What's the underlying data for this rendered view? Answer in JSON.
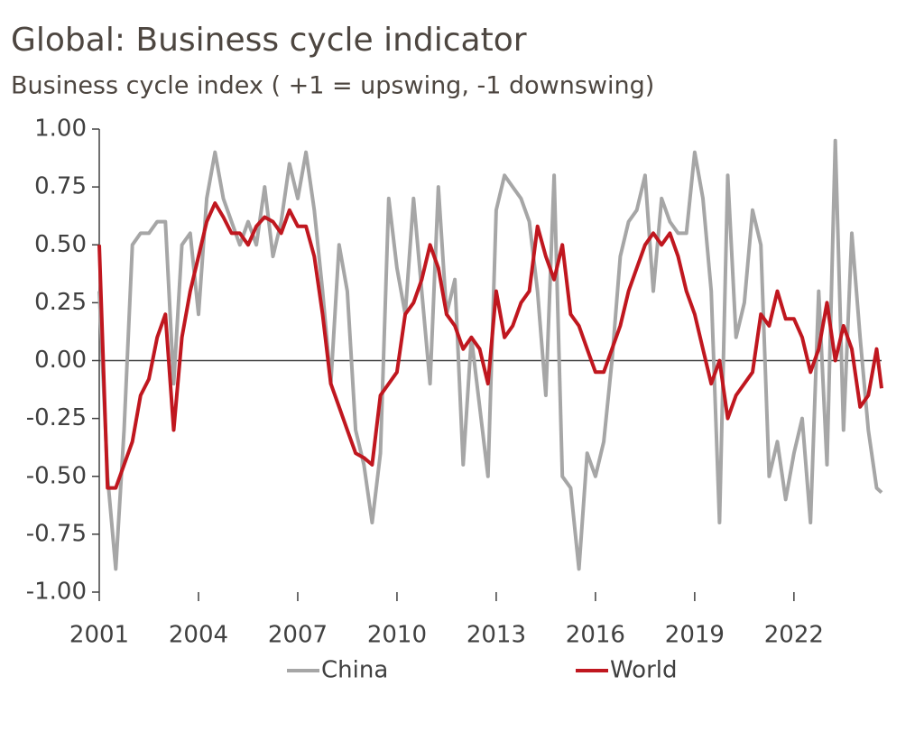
{
  "chart_data": {
    "type": "line",
    "title": "Global: Business cycle indicator",
    "subtitle": "Business cycle index ( +1 = upswing, -1 downswing)",
    "x": [
      2001.0,
      2001.25,
      2001.5,
      2001.75,
      2002.0,
      2002.25,
      2002.5,
      2002.75,
      2003.0,
      2003.25,
      2003.5,
      2003.75,
      2004.0,
      2004.25,
      2004.5,
      2004.75,
      2005.0,
      2005.25,
      2005.5,
      2005.75,
      2006.0,
      2006.25,
      2006.5,
      2006.75,
      2007.0,
      2007.25,
      2007.5,
      2007.75,
      2008.0,
      2008.25,
      2008.5,
      2008.75,
      2009.0,
      2009.25,
      2009.5,
      2009.75,
      2010.0,
      2010.25,
      2010.5,
      2010.75,
      2011.0,
      2011.25,
      2011.5,
      2011.75,
      2012.0,
      2012.25,
      2012.5,
      2012.75,
      2013.0,
      2013.25,
      2013.5,
      2013.75,
      2014.0,
      2014.25,
      2014.5,
      2014.75,
      2015.0,
      2015.25,
      2015.5,
      2015.75,
      2016.0,
      2016.25,
      2016.5,
      2016.75,
      2017.0,
      2017.25,
      2017.5,
      2017.75,
      2018.0,
      2018.25,
      2018.5,
      2018.75,
      2019.0,
      2019.25,
      2019.5,
      2019.75,
      2020.0,
      2020.25,
      2020.5,
      2020.75,
      2021.0,
      2021.25,
      2021.5,
      2021.75,
      2022.0,
      2022.25,
      2022.5,
      2022.75,
      2023.0,
      2023.25,
      2023.5,
      2023.75,
      2024.0,
      2024.25,
      2024.5,
      2024.65
    ],
    "series": [
      {
        "name": "China",
        "color": "#a6a6a6",
        "values": [
          0.3,
          -0.5,
          -0.9,
          -0.3,
          0.5,
          0.55,
          0.55,
          0.6,
          0.6,
          -0.1,
          0.5,
          0.55,
          0.2,
          0.7,
          0.9,
          0.7,
          0.6,
          0.5,
          0.6,
          0.5,
          0.75,
          0.45,
          0.6,
          0.85,
          0.7,
          0.9,
          0.65,
          0.3,
          -0.1,
          0.5,
          0.3,
          -0.3,
          -0.45,
          -0.7,
          -0.4,
          0.7,
          0.4,
          0.2,
          0.7,
          0.3,
          -0.1,
          0.75,
          0.2,
          0.35,
          -0.45,
          0.1,
          -0.2,
          -0.5,
          0.65,
          0.8,
          0.75,
          0.7,
          0.6,
          0.3,
          -0.15,
          0.8,
          -0.5,
          -0.55,
          -0.9,
          -0.4,
          -0.5,
          -0.35,
          0.0,
          0.45,
          0.6,
          0.65,
          0.8,
          0.3,
          0.7,
          0.6,
          0.55,
          0.55,
          0.9,
          0.7,
          0.3,
          -0.7,
          0.8,
          0.1,
          0.25,
          0.65,
          0.5,
          -0.5,
          -0.35,
          -0.6,
          -0.4,
          -0.25,
          -0.7,
          0.3,
          -0.45,
          0.95,
          -0.3,
          0.55,
          0.1,
          -0.3,
          -0.55,
          -0.57
        ]
      },
      {
        "name": "World",
        "color": "#c0171f",
        "values": [
          0.5,
          -0.55,
          -0.55,
          -0.45,
          -0.35,
          -0.15,
          -0.08,
          0.1,
          0.2,
          -0.3,
          0.1,
          0.3,
          0.45,
          0.6,
          0.68,
          0.62,
          0.55,
          0.55,
          0.5,
          0.58,
          0.62,
          0.6,
          0.55,
          0.65,
          0.58,
          0.58,
          0.45,
          0.2,
          -0.1,
          -0.2,
          -0.3,
          -0.4,
          -0.42,
          -0.45,
          -0.15,
          -0.1,
          -0.05,
          0.2,
          0.25,
          0.35,
          0.5,
          0.4,
          0.2,
          0.15,
          0.05,
          0.1,
          0.05,
          -0.1,
          0.3,
          0.1,
          0.15,
          0.25,
          0.3,
          0.58,
          0.45,
          0.35,
          0.5,
          0.2,
          0.15,
          0.05,
          -0.05,
          -0.05,
          0.05,
          0.15,
          0.3,
          0.4,
          0.5,
          0.55,
          0.5,
          0.55,
          0.45,
          0.3,
          0.2,
          0.05,
          -0.1,
          0.0,
          -0.25,
          -0.15,
          -0.1,
          -0.05,
          0.2,
          0.15,
          0.3,
          0.18,
          0.18,
          0.1,
          -0.05,
          0.05,
          0.25,
          0.0,
          0.15,
          0.05,
          -0.2,
          -0.15,
          0.05,
          -0.12
        ]
      }
    ],
    "xlim": [
      2001,
      2024.65
    ],
    "xticks": [
      2001,
      2004,
      2007,
      2010,
      2013,
      2016,
      2019,
      2022
    ],
    "ylim": [
      -1,
      1
    ],
    "yticks": [
      {
        "value": 1,
        "label": "1.00"
      },
      {
        "value": 0.75,
        "label": "0.75"
      },
      {
        "value": 0.5,
        "label": "0.50"
      },
      {
        "value": 0.25,
        "label": "0.25"
      },
      {
        "value": 0,
        "label": "0.00"
      },
      {
        "value": -0.25,
        "label": "-0.25"
      },
      {
        "value": -0.5,
        "label": "-0.50"
      },
      {
        "value": -0.75,
        "label": "-0.75"
      },
      {
        "value": -1,
        "label": "-1.00"
      }
    ],
    "legend": "bottom"
  }
}
